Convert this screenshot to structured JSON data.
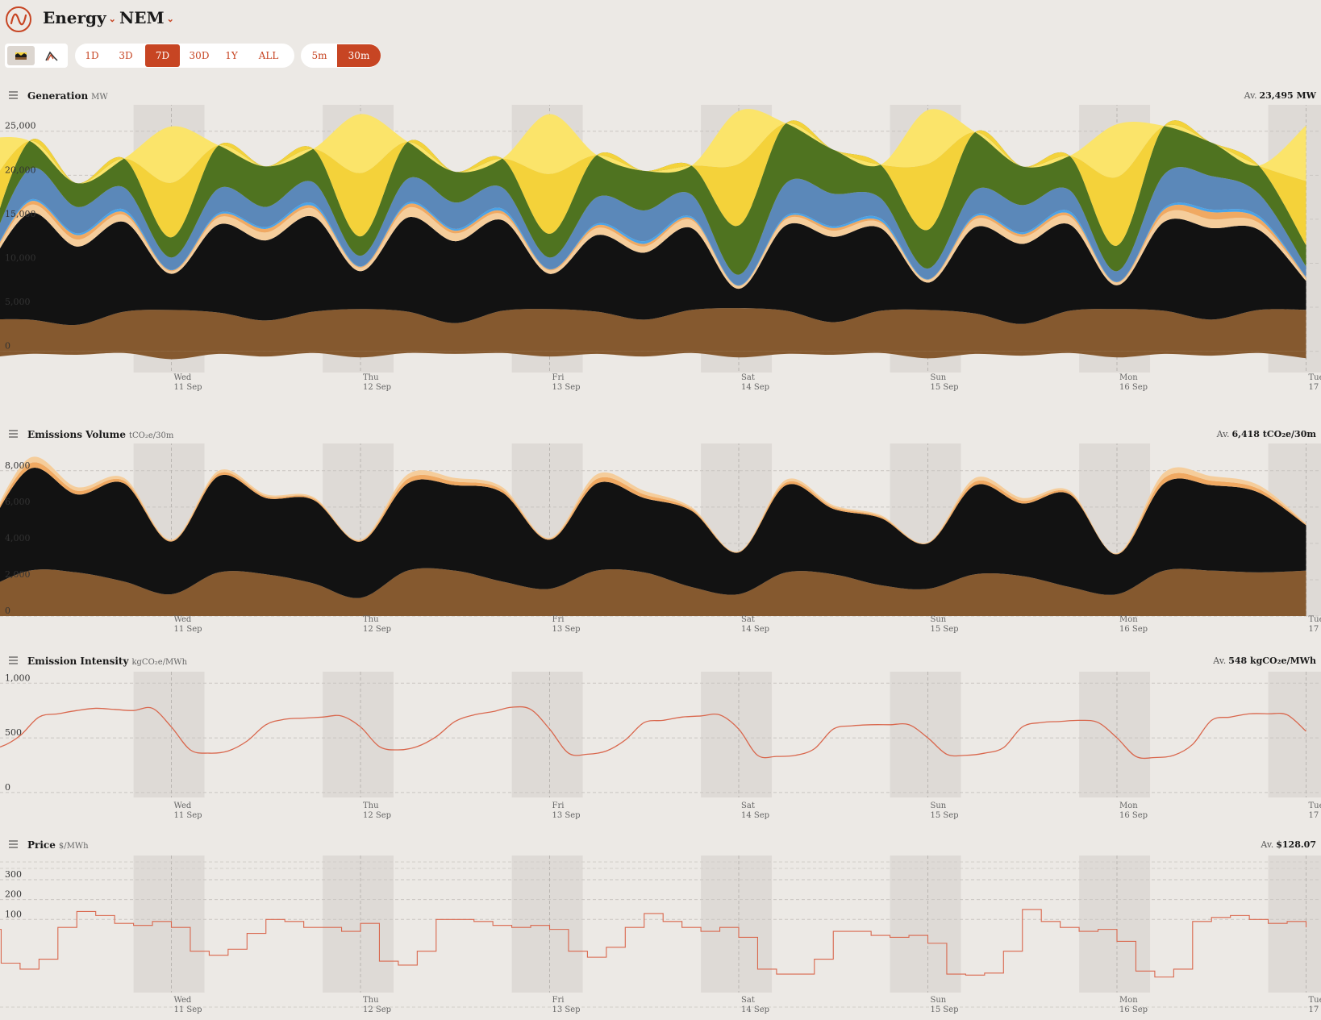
{
  "header": {
    "section": "Energy",
    "region": "NEM"
  },
  "toolbar": {
    "ranges": [
      "1D",
      "3D",
      "7D",
      "30D",
      "1Y",
      "ALL"
    ],
    "selected_range": "7D",
    "intervals": [
      "5m",
      "30m"
    ],
    "selected_interval": "30m"
  },
  "day_labels": [
    {
      "day": "Wed",
      "date": "11 Sep"
    },
    {
      "day": "Thu",
      "date": "12 Sep"
    },
    {
      "day": "Fri",
      "date": "13 Sep"
    },
    {
      "day": "Sat",
      "date": "14 Sep"
    },
    {
      "day": "Sun",
      "date": "15 Sep"
    },
    {
      "day": "Mon",
      "date": "16 Sep"
    },
    {
      "day": "Tue",
      "date": "17 Sep"
    }
  ],
  "colors": {
    "brown_coal": "#85592f",
    "black_coal": "#121212",
    "gas_ccgt": "#f5cd9b",
    "gas_ocgt": "#f0a962",
    "hydro": "#5b88b9",
    "battery": "#4aa3e8",
    "wind": "#4f7320",
    "utility_solar": "#f4d23a",
    "rooftop_solar": "#fbe46a",
    "line": "#d9674d",
    "accent": "#c74523"
  },
  "chart_data": [
    {
      "type": "area",
      "title": "Generation",
      "unit": "MW",
      "average_label": "Av.",
      "average": "23,495 MW",
      "x_days": [
        0,
        0.25,
        0.5,
        0.75,
        1,
        1.25,
        1.5,
        1.75,
        2,
        2.25,
        2.5,
        2.75,
        3,
        3.25,
        3.5,
        3.75,
        4,
        4.25,
        4.5,
        4.75,
        5,
        5.25,
        5.5,
        5.75,
        6,
        6.25,
        6.5,
        6.75,
        7
      ],
      "ylim": [
        -1500,
        28000
      ],
      "y_ticks": [
        "25,000",
        "20,000",
        "15,000",
        "10,000",
        "5,000",
        "0"
      ],
      "y_tick_values": [
        25000,
        20000,
        15000,
        10000,
        5000,
        0
      ],
      "series": [
        {
          "key": "brown_coal",
          "values": [
            3600,
            3600,
            3000,
            4500,
            4700,
            4400,
            3500,
            4500,
            4800,
            4500,
            3200,
            4600,
            4800,
            4500,
            3600,
            4700,
            4900,
            4600,
            3300,
            4600,
            4700,
            4300,
            3100,
            4600,
            4800,
            4600,
            3600,
            4700,
            4700
          ]
        },
        {
          "key": "black_coal",
          "values": [
            4700,
            12100,
            8900,
            10200,
            4100,
            10000,
            9100,
            10800,
            4300,
            10700,
            9300,
            10300,
            4000,
            8700,
            7600,
            9300,
            2200,
            9700,
            9700,
            9400,
            3100,
            9800,
            9100,
            9800,
            2700,
            10100,
            10400,
            9100,
            3300
          ]
        },
        {
          "key": "gas_ccgt",
          "values": [
            200,
            900,
            800,
            800,
            300,
            800,
            900,
            900,
            400,
            1100,
            900,
            700,
            400,
            800,
            700,
            900,
            300,
            700,
            700,
            600,
            300,
            900,
            800,
            900,
            300,
            900,
            1000,
            800,
            300
          ]
        },
        {
          "key": "gas_ocgt",
          "values": [
            100,
            400,
            500,
            300,
            100,
            300,
            400,
            300,
            100,
            400,
            300,
            300,
            100,
            300,
            300,
            200,
            50,
            200,
            300,
            200,
            50,
            300,
            300,
            300,
            50,
            500,
            800,
            500,
            100
          ]
        },
        {
          "key": "battery",
          "values": [
            50,
            200,
            200,
            300,
            50,
            200,
            200,
            300,
            50,
            200,
            200,
            300,
            50,
            200,
            300,
            200,
            50,
            200,
            200,
            300,
            50,
            200,
            200,
            300,
            50,
            200,
            300,
            300,
            50
          ]
        },
        {
          "key": "hydro",
          "values": [
            800,
            3500,
            3000,
            2500,
            1400,
            2800,
            2300,
            2400,
            1200,
            2700,
            3000,
            2400,
            1300,
            3000,
            3500,
            2500,
            1200,
            3700,
            3700,
            2300,
            1200,
            2800,
            3100,
            2400,
            1200,
            3800,
            3800,
            2500,
            1200
          ]
        },
        {
          "key": "wind",
          "values": [
            600,
            3200,
            2700,
            3300,
            2300,
            4900,
            4600,
            3800,
            2200,
            4200,
            3500,
            3300,
            2700,
            4800,
            4500,
            3300,
            5600,
            6800,
            5000,
            3800,
            4400,
            6600,
            4400,
            3900,
            2900,
            5500,
            3800,
            3200,
            2400
          ]
        },
        {
          "key": "utility_solar",
          "values": [
            7500,
            0,
            0,
            0,
            6200,
            0,
            0,
            0,
            7200,
            0,
            0,
            0,
            6800,
            0,
            0,
            0,
            7000,
            0,
            0,
            0,
            7500,
            0,
            0,
            0,
            7800,
            0,
            0,
            0,
            7300
          ]
        },
        {
          "key": "rooftop_solar",
          "values": [
            6600,
            0,
            0,
            0,
            6400,
            0,
            0,
            0,
            6700,
            0,
            0,
            0,
            6800,
            0,
            0,
            0,
            6000,
            0,
            0,
            0,
            6100,
            0,
            0,
            0,
            6000,
            0,
            0,
            0,
            6300
          ]
        }
      ],
      "negative": [
        -800,
        -300,
        -400,
        -200,
        -900,
        -300,
        -600,
        -200,
        -700,
        -200,
        -300,
        -200,
        -600,
        -300,
        -600,
        -200,
        -700,
        -300,
        -400,
        -200,
        -800,
        -300,
        -500,
        -200,
        -700,
        -300,
        -500,
        -200,
        -800
      ]
    },
    {
      "type": "area",
      "title": "Emissions Volume",
      "unit": "tCO₂e/30m",
      "average_label": "Av.",
      "average": "6,418 tCO₂e/30m",
      "x_days": [
        0,
        0.25,
        0.5,
        0.75,
        1,
        1.25,
        1.5,
        1.75,
        2,
        2.25,
        2.5,
        2.75,
        3,
        3.25,
        3.5,
        3.75,
        4,
        4.25,
        4.5,
        4.75,
        5,
        5.25,
        5.5,
        5.75,
        6,
        6.25,
        6.5,
        6.75,
        7
      ],
      "ylim": [
        0,
        9500
      ],
      "y_ticks": [
        "8,000",
        "6,000",
        "4,000",
        "2,000",
        "0"
      ],
      "y_tick_values": [
        8000,
        6000,
        4000,
        2000,
        0
      ],
      "series": [
        {
          "key": "brown_coal",
          "values": [
            1400,
            2500,
            2400,
            1900,
            1200,
            2400,
            2300,
            1800,
            1000,
            2500,
            2500,
            1900,
            1500,
            2500,
            2400,
            1600,
            1200,
            2400,
            2300,
            1700,
            1500,
            2300,
            2200,
            1600,
            1200,
            2500,
            2500,
            2400,
            2500
          ]
        },
        {
          "key": "black_coal",
          "values": [
            2800,
            5600,
            4300,
            5400,
            2900,
            5300,
            4200,
            4600,
            3100,
            4800,
            4700,
            4900,
            2700,
            4800,
            4100,
            4200,
            2300,
            4800,
            3600,
            3700,
            2500,
            4900,
            4000,
            5100,
            2200,
            4800,
            4700,
            4400,
            2500
          ]
        },
        {
          "key": "gas_ocgt",
          "values": [
            50,
            300,
            200,
            150,
            50,
            150,
            100,
            80,
            50,
            250,
            200,
            150,
            50,
            250,
            200,
            100,
            30,
            150,
            100,
            80,
            30,
            200,
            150,
            100,
            30,
            300,
            250,
            200,
            50
          ]
        },
        {
          "key": "gas_ccgt",
          "values": [
            50,
            300,
            200,
            150,
            50,
            150,
            100,
            80,
            50,
            250,
            200,
            150,
            50,
            250,
            200,
            100,
            30,
            150,
            100,
            80,
            30,
            200,
            150,
            100,
            30,
            300,
            250,
            200,
            50
          ]
        }
      ]
    },
    {
      "type": "line",
      "title": "Emission Intensity",
      "unit": "kgCO₂e/MWh",
      "average_label": "Av.",
      "average": "548 kgCO₂e/MWh",
      "x_days": [
        0,
        0.1,
        0.2,
        0.3,
        0.4,
        0.5,
        0.6,
        0.7,
        0.8,
        0.9,
        1,
        1.1,
        1.2,
        1.3,
        1.4,
        1.5,
        1.6,
        1.7,
        1.8,
        1.9,
        2,
        2.1,
        2.2,
        2.3,
        2.4,
        2.5,
        2.6,
        2.7,
        2.8,
        2.9,
        3,
        3.1,
        3.2,
        3.3,
        3.4,
        3.5,
        3.6,
        3.7,
        3.8,
        3.9,
        4,
        4.1,
        4.2,
        4.3,
        4.4,
        4.5,
        4.6,
        4.7,
        4.8,
        4.9,
        5,
        5.1,
        5.2,
        5.3,
        5.4,
        5.5,
        5.6,
        5.7,
        5.8,
        5.9,
        6,
        6.1,
        6.2,
        6.3,
        6.4,
        6.5,
        6.6,
        6.7,
        6.8,
        6.9,
        7
      ],
      "values": [
        400,
        420,
        520,
        690,
        720,
        750,
        770,
        760,
        750,
        770,
        600,
        390,
        360,
        380,
        470,
        620,
        670,
        680,
        690,
        700,
        600,
        420,
        390,
        420,
        510,
        650,
        710,
        740,
        780,
        760,
        580,
        360,
        350,
        380,
        480,
        640,
        660,
        690,
        700,
        710,
        580,
        340,
        330,
        340,
        400,
        580,
        610,
        620,
        620,
        620,
        500,
        350,
        340,
        360,
        410,
        600,
        640,
        650,
        660,
        640,
        500,
        330,
        320,
        340,
        440,
        660,
        690,
        720,
        720,
        710,
        560
      ],
      "ylim": [
        -60,
        1120
      ],
      "y_ticks": [
        "1,000",
        "500",
        "0"
      ],
      "y_tick_values": [
        1000,
        500,
        0
      ]
    },
    {
      "type": "line",
      "title": "Price",
      "unit": "$/MWh",
      "average_label": "Av.",
      "average": "$128.07",
      "x_days": [
        0,
        0.1,
        0.2,
        0.3,
        0.4,
        0.5,
        0.6,
        0.7,
        0.8,
        0.9,
        1,
        1.1,
        1.2,
        1.3,
        1.4,
        1.5,
        1.6,
        1.7,
        1.8,
        1.9,
        2,
        2.1,
        2.2,
        2.3,
        2.4,
        2.5,
        2.6,
        2.7,
        2.8,
        2.9,
        3,
        3.1,
        3.2,
        3.3,
        3.4,
        3.5,
        3.6,
        3.7,
        3.8,
        3.9,
        4,
        4.1,
        4.2,
        4.3,
        4.4,
        4.5,
        4.6,
        4.7,
        4.8,
        4.9,
        5,
        5.1,
        5.2,
        5.3,
        5.4,
        5.5,
        5.6,
        5.7,
        5.8,
        5.9,
        6,
        6.1,
        6.2,
        6.3,
        6.4,
        6.5,
        6.6,
        6.7,
        6.8,
        6.9,
        7
      ],
      "values": [
        50,
        -120,
        -150,
        -100,
        60,
        140,
        120,
        80,
        70,
        90,
        60,
        -60,
        -80,
        -50,
        30,
        100,
        90,
        60,
        60,
        40,
        80,
        -110,
        -130,
        -60,
        100,
        100,
        90,
        70,
        60,
        70,
        50,
        -60,
        -90,
        -40,
        60,
        130,
        90,
        60,
        40,
        60,
        10,
        -150,
        -175,
        -175,
        -100,
        40,
        40,
        20,
        10,
        20,
        -20,
        -175,
        -180,
        -170,
        -60,
        150,
        90,
        60,
        40,
        50,
        -10,
        -160,
        -190,
        -150,
        90,
        110,
        120,
        100,
        80,
        90,
        60
      ],
      "ylim": [
        -260,
        430
      ],
      "y_ticks": [
        "300",
        "200",
        "100"
      ],
      "y_tick_values": [
        300,
        200,
        100
      ]
    }
  ]
}
